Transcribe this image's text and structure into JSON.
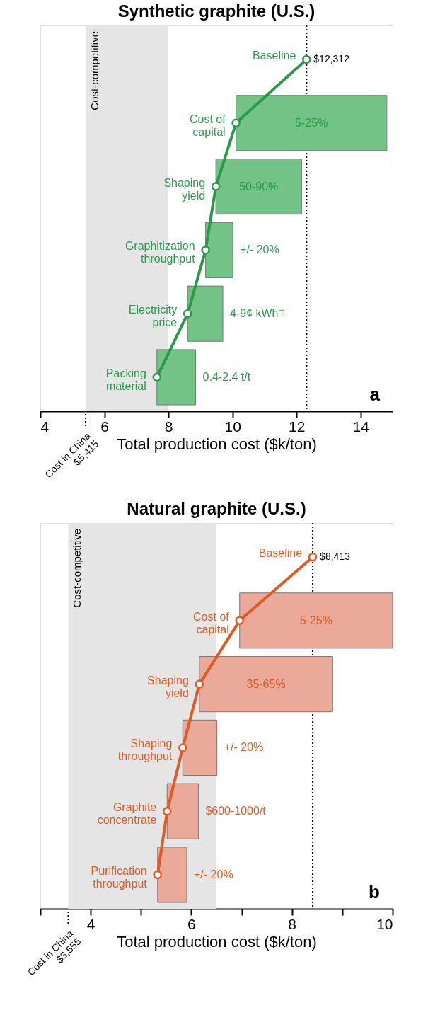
{
  "chart_data": [
    {
      "type": "bar",
      "orientation": "horizontal",
      "title": "Synthetic graphite (U.S.)",
      "xlabel": "Total production cost ($k/ton)",
      "categories": [
        "Baseline",
        "Cost of capital",
        "Shaping yield",
        "Graphitization throughput",
        "Electricity price",
        "Packing material"
      ],
      "xlim": [
        4,
        15
      ],
      "xticks": [
        4,
        6,
        8,
        10,
        12,
        14
      ],
      "tick_labels": "x",
      "series": [
        {
          "type": "bar",
          "color": "#74c386",
          "base": [
            null,
            10.11,
            9.48,
            9.16,
            8.6,
            7.64
          ],
          "values": [
            null,
            4.71,
            2.68,
            0.85,
            1.1,
            1.21
          ]
        },
        {
          "type": "line",
          "color": "#2a9a4a",
          "marker": "circle",
          "values": [
            12.312,
            10.11,
            9.48,
            9.16,
            8.6,
            7.64
          ]
        }
      ],
      "ref_lines": [
        {
          "axis": "x",
          "value": 12.312,
          "line_style": "dotted",
          "color": "#000000"
        },
        {
          "axis": "x",
          "value": 5.415,
          "label": "Cost in China $5,415",
          "line_style": "dotted",
          "color": "#000000"
        }
      ],
      "bands": [
        {
          "axis": "x",
          "from": 5.415,
          "to": 8,
          "label": "Cost-competitive",
          "color": "#e5e5e5"
        }
      ],
      "annotations": [
        {
          "text": "$12,312",
          "x": 12.312,
          "y": "Baseline"
        },
        "5-25%",
        "50-90%",
        {
          "text": "+/- 20%",
          "x": 10.01,
          "y": "Graphitization throughput"
        },
        {
          "text": "4-9¢ kWh⁻¹",
          "x": 9.7,
          "y": "Electricity price"
        },
        {
          "text": "0.4-2.4 t/t",
          "x": 8.85,
          "y": "Packing material"
        },
        "a"
      ]
    },
    {
      "type": "bar",
      "orientation": "horizontal",
      "title": "Natural graphite (U.S.)",
      "xlabel": "Total production cost ($k/ton)",
      "categories": [
        "Baseline",
        "Cost of capital",
        "Shaping yield",
        "Shaping throughput",
        "Graphite concentrate",
        "Purification throughput"
      ],
      "xlim": [
        3,
        10
      ],
      "xticks": [
        {
          "value": 3,
          "label": null
        },
        4,
        {
          "value": 5,
          "label": null
        },
        6,
        {
          "value": 7,
          "label": null
        },
        8,
        {
          "value": 9,
          "label": null
        },
        10
      ],
      "tick_labels": "x",
      "series": [
        {
          "type": "bar",
          "color": "#eba99a",
          "base": [
            null,
            6.96,
            6.16,
            5.83,
            5.52,
            5.33
          ],
          "values": [
            null,
            3.04,
            2.65,
            0.68,
            0.62,
            0.58
          ]
        },
        {
          "type": "line",
          "color": "#e05a24",
          "marker": "circle",
          "values": [
            8.413,
            6.96,
            6.16,
            5.83,
            5.52,
            5.33
          ]
        }
      ],
      "ref_lines": [
        {
          "axis": "x",
          "value": 8.413,
          "line_style": "dotted",
          "color": "#000000"
        },
        {
          "axis": "x",
          "value": 3.555,
          "label": "Cost in China $3,555",
          "line_style": "dotted",
          "color": "#000000"
        }
      ],
      "bands": [
        {
          "axis": "x",
          "from": 3.555,
          "to": 6.5,
          "label": "Cost-competitive",
          "color": "#e5e5e5"
        }
      ],
      "annotations": [
        {
          "text": "$8,413",
          "x": 8.413,
          "y": "Baseline"
        },
        "5-25%",
        "35-65%",
        {
          "text": "+/- 20%",
          "x": 6.51,
          "y": "Shaping throughput"
        },
        {
          "text": "$600-1000/t",
          "x": 6.14,
          "y": "Graphite concentrate"
        },
        {
          "text": "+/- 20%",
          "x": 5.91,
          "y": "Purification throughput"
        },
        "b"
      ]
    }
  ]
}
